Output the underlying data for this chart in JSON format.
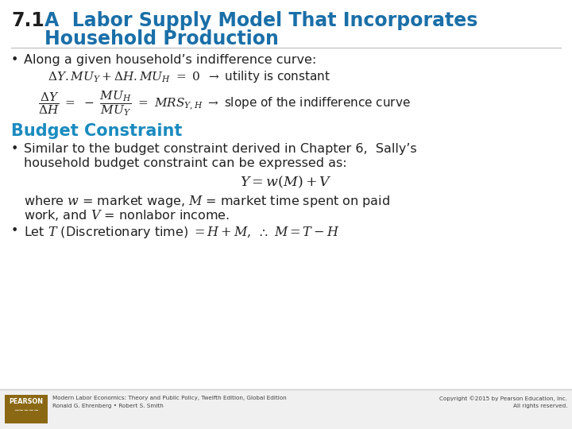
{
  "bg_color": "#ffffff",
  "title_number": "7.1",
  "title_number_color": "#1f1f1f",
  "title_color": "#1a6fa8",
  "title_fontsize": 17,
  "bullet_color": "#222222",
  "section_color": "#1a8bbf",
  "footer_line_color": "#cccccc",
  "footer_bg": "#f0f0f0",
  "pearson_box_color": "#8B6914",
  "footer_left1": "Modern Labor Economics: Theory and Public Policy, Twelfth Edition, Global Edition",
  "footer_left2": "Ronald G. Ehrenberg • Robert S. Smith",
  "footer_right1": "Copyright ©2015 by Pearson Education, Inc.",
  "footer_right2": "All rights reserved.",
  "math1_fontsize": 11,
  "math2_fontsize": 11,
  "body_fontsize": 11.5,
  "section_fontsize": 15
}
